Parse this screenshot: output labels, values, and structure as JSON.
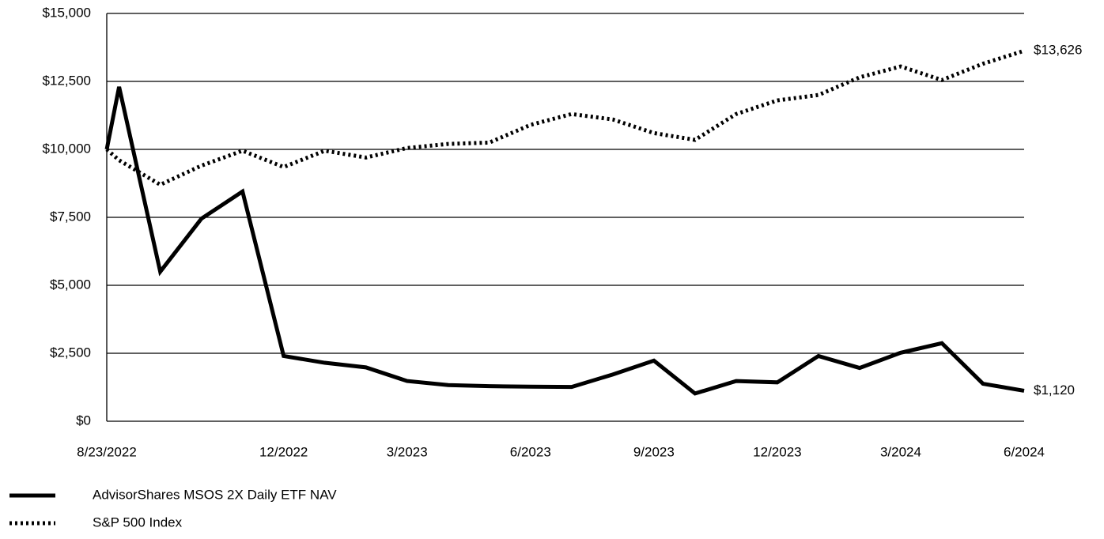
{
  "chart_data": {
    "type": "line",
    "categories": [
      "8/23/2022",
      null,
      null,
      null,
      null,
      "12/2022",
      null,
      null,
      "3/2023",
      null,
      null,
      "6/2023",
      null,
      null,
      "9/2023",
      null,
      null,
      "12/2023",
      null,
      null,
      "3/2024",
      null,
      null,
      "6/2024"
    ],
    "series": [
      {
        "name": "AdvisorShares MSOS 2X Daily ETF NAV",
        "color": "#000000",
        "style": "solid",
        "values": [
          10000,
          12300,
          5500,
          7450,
          8450,
          2400,
          2150,
          1980,
          1480,
          1330,
          1290,
          1270,
          1260,
          1720,
          2230,
          1020,
          1480,
          1430,
          2400,
          1960,
          2520,
          2870,
          1380,
          1120
        ],
        "value_labels": [
          null,
          null,
          null,
          null,
          null,
          null,
          null,
          null,
          null,
          null,
          null,
          null,
          null,
          null,
          null,
          null,
          null,
          null,
          null,
          null,
          null,
          null,
          null,
          "$1,120"
        ]
      },
      {
        "name": "S&P 500 Index",
        "color": "#000000",
        "style": "dotted",
        "values": [
          10000,
          9600,
          8700,
          9400,
          9950,
          9350,
          9950,
          9700,
          10050,
          10200,
          10250,
          10900,
          11300,
          11100,
          10600,
          10350,
          11300,
          11800,
          12000,
          12650,
          13050,
          12550,
          13150,
          13626
        ],
        "value_labels": [
          null,
          null,
          null,
          null,
          null,
          null,
          null,
          null,
          null,
          null,
          null,
          null,
          null,
          null,
          null,
          null,
          null,
          null,
          null,
          null,
          null,
          null,
          null,
          "$13,626"
        ]
      }
    ],
    "ylim": [
      0,
      15000
    ],
    "yticks": [
      {
        "value": 0,
        "label": "$0"
      },
      {
        "value": 2500,
        "label": "$2,500"
      },
      {
        "value": 5000,
        "label": "$5,000"
      },
      {
        "value": 7500,
        "label": "$7,500"
      },
      {
        "value": 10000,
        "label": "$10,000"
      },
      {
        "value": 12500,
        "label": "$12,500"
      },
      {
        "value": 15000,
        "label": "$15,000"
      }
    ],
    "grid": true
  }
}
